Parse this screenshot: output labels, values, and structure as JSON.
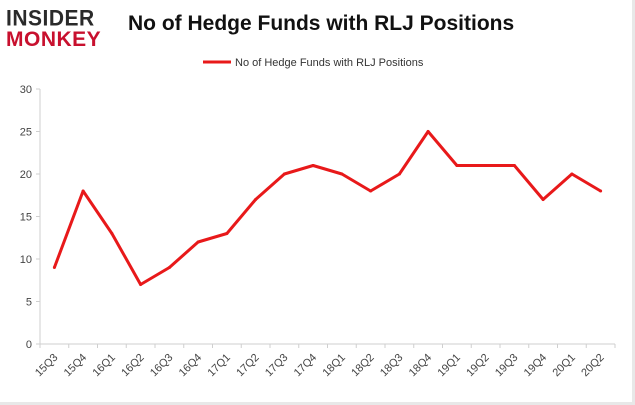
{
  "logo": {
    "line1": "INSIDER",
    "line2": "MONKEY"
  },
  "chart_data": {
    "type": "line",
    "title": "No of Hedge Funds with RLJ Positions",
    "xlabel": "",
    "ylabel": "",
    "categories": [
      "15Q3",
      "15Q4",
      "16Q1",
      "16Q2",
      "16Q3",
      "16Q4",
      "17Q1",
      "17Q2",
      "17Q3",
      "17Q4",
      "18Q1",
      "18Q2",
      "18Q3",
      "18Q4",
      "19Q1",
      "19Q2",
      "19Q3",
      "19Q4",
      "20Q1",
      "20Q2"
    ],
    "series": [
      {
        "name": "No of Hedge Funds with RLJ Positions",
        "values": [
          9,
          18,
          13,
          7,
          9,
          12,
          13,
          17,
          20,
          21,
          20,
          18,
          20,
          25,
          21,
          21,
          21,
          17,
          20,
          18
        ],
        "color": "#e8191a"
      }
    ],
    "ylim": [
      0,
      30
    ],
    "yticks": [
      0,
      5,
      10,
      15,
      20,
      25,
      30
    ],
    "grid": false,
    "legend_position": "top-center"
  }
}
